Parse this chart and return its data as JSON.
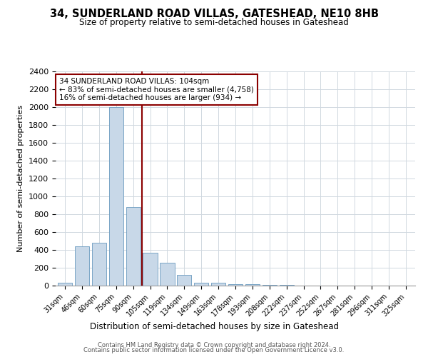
{
  "title": "34, SUNDERLAND ROAD VILLAS, GATESHEAD, NE10 8HB",
  "subtitle": "Size of property relative to semi-detached houses in Gateshead",
  "xlabel": "Distribution of semi-detached houses by size in Gateshead",
  "ylabel": "Number of semi-detached properties",
  "annotation_line1": "34 SUNDERLAND ROAD VILLAS: 104sqm",
  "annotation_line2": "← 83% of semi-detached houses are smaller (4,758)",
  "annotation_line3": "16% of semi-detached houses are larger (934) →",
  "footer1": "Contains HM Land Registry data © Crown copyright and database right 2024.",
  "footer2": "Contains public sector information licensed under the Open Government Licence v3.0.",
  "bar_color": "#c8d8e8",
  "bar_edge_color": "#6a9abf",
  "marker_line_color": "#8b0000",
  "annotation_box_color": "#8b0000",
  "categories": [
    "31sqm",
    "46sqm",
    "60sqm",
    "75sqm",
    "90sqm",
    "105sqm",
    "119sqm",
    "134sqm",
    "149sqm",
    "163sqm",
    "178sqm",
    "193sqm",
    "208sqm",
    "222sqm",
    "237sqm",
    "252sqm",
    "267sqm",
    "281sqm",
    "296sqm",
    "311sqm",
    "325sqm"
  ],
  "values": [
    30,
    440,
    480,
    2000,
    880,
    370,
    255,
    120,
    35,
    35,
    20,
    18,
    8,
    5,
    4,
    3,
    2,
    2,
    1,
    1,
    1
  ],
  "ylim": [
    0,
    2400
  ],
  "yticks": [
    0,
    200,
    400,
    600,
    800,
    1000,
    1200,
    1400,
    1600,
    1800,
    2000,
    2200,
    2400
  ],
  "marker_bin_index": 4,
  "figsize": [
    6.0,
    5.0
  ],
  "dpi": 100
}
